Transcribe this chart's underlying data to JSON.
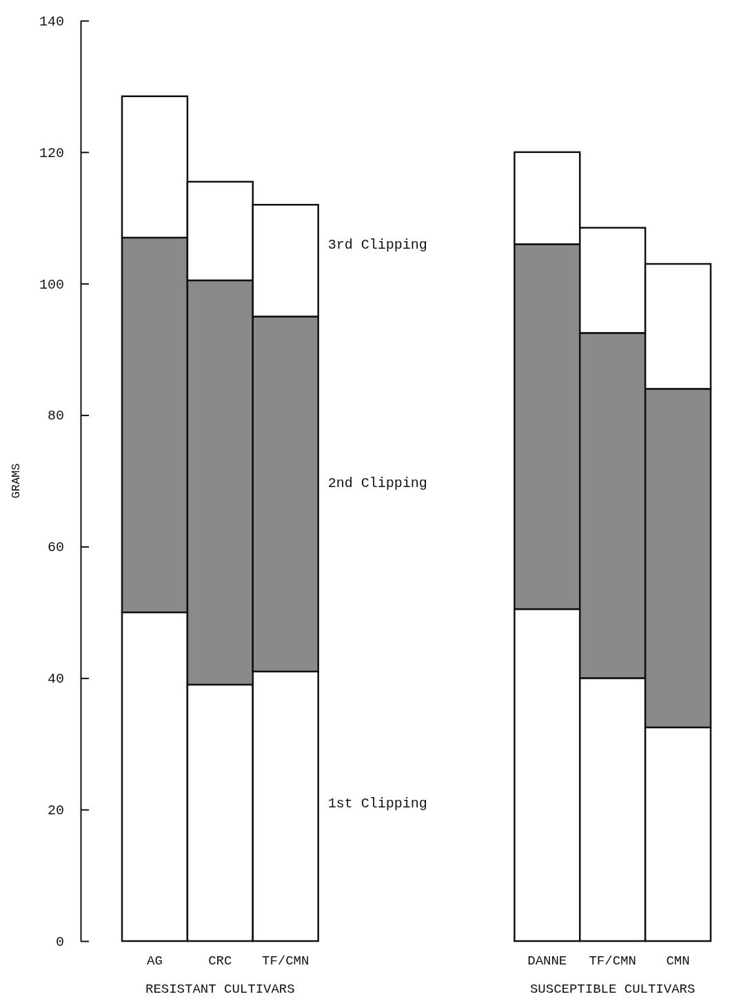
{
  "chart_data": {
    "type": "bar",
    "stacked": true,
    "ylabel": "GRAMS",
    "categories": [
      "AG",
      "CRC",
      "TF/CMN",
      null,
      null,
      null,
      "DANNE",
      "TF/CMN",
      "CMN"
    ],
    "series": [
      {
        "name": "1st Clipping",
        "color": "#ffffff",
        "values": [
          50,
          39,
          41,
          null,
          null,
          null,
          50.5,
          40,
          32.5
        ]
      },
      {
        "name": "2nd Clipping",
        "color": "#8a8a8a",
        "values": [
          57,
          61.5,
          54,
          null,
          null,
          null,
          55.5,
          52.5,
          51.5
        ]
      },
      {
        "name": "3rd Clipping",
        "color": "#ffffff",
        "values": [
          21.5,
          15,
          17,
          null,
          null,
          null,
          14,
          16,
          19
        ]
      }
    ],
    "ylim": [
      0,
      140
    ],
    "yticks": [
      0,
      20,
      40,
      60,
      80,
      100,
      120,
      140
    ],
    "grid": false,
    "annotations": [
      "RESISTANT CULTIVARS",
      "SUSCEPTIBLE CULTIVARS"
    ]
  }
}
